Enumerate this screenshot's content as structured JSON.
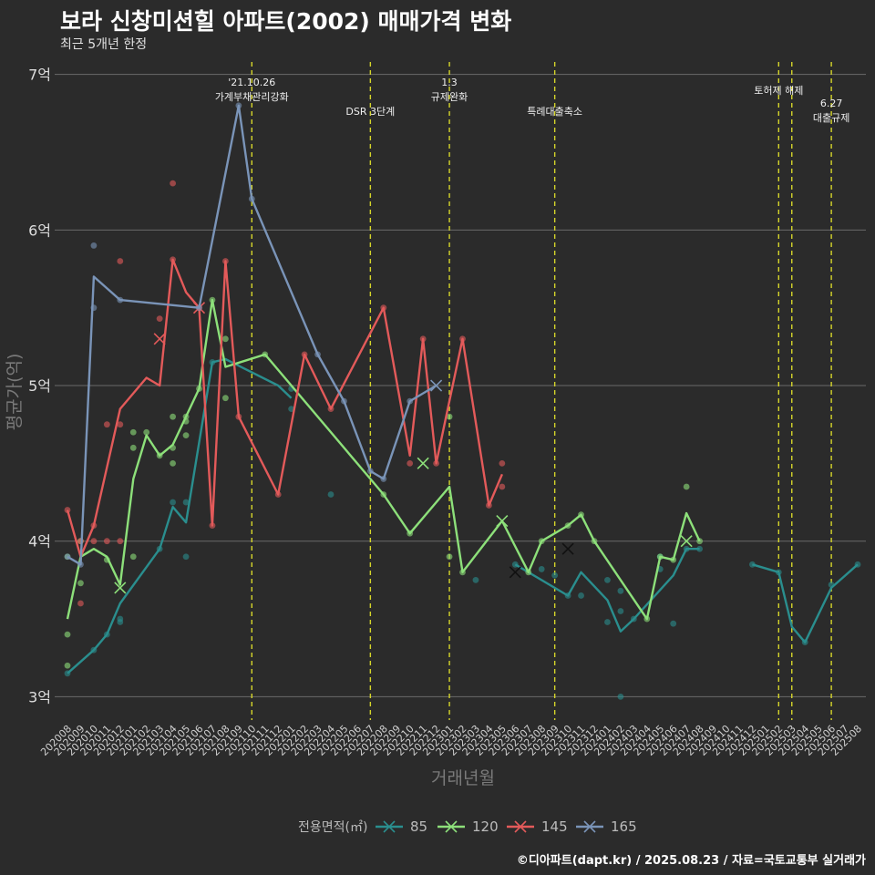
{
  "title": "보라 신창미션힐 아파트(2002) 매매가격 변화",
  "subtitle": "최근 5개년 한정",
  "caption": "©디아파트(dapt.kr) / 2025.08.23 / 자료=국토교통부 실거래가",
  "chart_data": {
    "type": "line",
    "xlabel": "거래년월",
    "ylabel": "평균가(억)",
    "ylim": [
      2.85,
      7.08
    ],
    "yticks": [
      {
        "v": 3,
        "label": "3억"
      },
      {
        "v": 4,
        "label": "4억"
      },
      {
        "v": 5,
        "label": "5억"
      },
      {
        "v": 6,
        "label": "6억"
      },
      {
        "v": 7,
        "label": "7억"
      }
    ],
    "categories": [
      "202008",
      "202009",
      "202010",
      "202011",
      "202012",
      "202101",
      "202102",
      "202103",
      "202104",
      "202105",
      "202106",
      "202107",
      "202108",
      "202109",
      "202110",
      "202111",
      "202112",
      "202201",
      "202202",
      "202203",
      "202204",
      "202205",
      "202206",
      "202207",
      "202208",
      "202209",
      "202210",
      "202211",
      "202212",
      "202301",
      "202302",
      "202303",
      "202304",
      "202305",
      "202306",
      "202307",
      "202308",
      "202309",
      "202310",
      "202311",
      "202312",
      "202401",
      "202402",
      "202403",
      "202404",
      "202405",
      "202406",
      "202407",
      "202408",
      "202409",
      "202410",
      "202411",
      "202412",
      "202501",
      "202502",
      "202503",
      "202504",
      "202505",
      "202506",
      "202507",
      "202508"
    ],
    "grid": true,
    "legend_title": "전용면적(㎡)",
    "legend_position": "bottom",
    "series": [
      {
        "name": "85",
        "color": "#2a8e8e",
        "line": [
          [
            0,
            3.15
          ],
          [
            2,
            3.3
          ],
          [
            3,
            3.4
          ],
          [
            4,
            3.6
          ],
          [
            7,
            3.95
          ],
          [
            8,
            4.22
          ],
          [
            9,
            4.12
          ],
          [
            11,
            5.15
          ],
          [
            12,
            5.17
          ],
          [
            16,
            5.0
          ],
          [
            17,
            4.92
          ]
        ],
        "points": [
          [
            0,
            3.15
          ],
          [
            2,
            3.3
          ],
          [
            3,
            3.4
          ],
          [
            4,
            3.48
          ],
          [
            4,
            3.5
          ],
          [
            7,
            3.95
          ],
          [
            8,
            4.25
          ],
          [
            9,
            4.25
          ],
          [
            9,
            3.9
          ],
          [
            11,
            5.15
          ],
          [
            17,
            4.98
          ],
          [
            17,
            4.85
          ],
          [
            20,
            4.3
          ],
          [
            31,
            3.75
          ],
          [
            34,
            3.85
          ],
          [
            36,
            3.82
          ],
          [
            37,
            3.78
          ],
          [
            38,
            3.65
          ],
          [
            39,
            3.65
          ],
          [
            41,
            3.75
          ],
          [
            41,
            3.48
          ],
          [
            42,
            3.55
          ],
          [
            42,
            3.68
          ],
          [
            42,
            3.0
          ],
          [
            43,
            3.5
          ],
          [
            45,
            3.9
          ],
          [
            45,
            3.82
          ],
          [
            46,
            3.47
          ],
          [
            47,
            3.95
          ],
          [
            48,
            3.95
          ],
          [
            52,
            3.85
          ],
          [
            54,
            3.8
          ],
          [
            56,
            3.35
          ],
          [
            58,
            3.72
          ],
          [
            60,
            3.85
          ]
        ],
        "crosses": [
          [
            34,
            3.8
          ],
          [
            38,
            3.95
          ]
        ],
        "line2": [
          [
            34,
            3.85
          ],
          [
            38,
            3.65
          ],
          [
            39,
            3.8
          ],
          [
            41,
            3.62
          ],
          [
            42,
            3.42
          ],
          [
            43,
            3.5
          ],
          [
            46,
            3.78
          ],
          [
            47,
            3.95
          ],
          [
            48,
            3.95
          ]
        ],
        "line3": [
          [
            52,
            3.85
          ],
          [
            54,
            3.8
          ],
          [
            55,
            3.45
          ],
          [
            56,
            3.35
          ],
          [
            58,
            3.7
          ],
          [
            60,
            3.85
          ]
        ]
      },
      {
        "name": "120",
        "color": "#8de07a",
        "line": [
          [
            0,
            3.5
          ],
          [
            1,
            3.9
          ],
          [
            2,
            3.95
          ],
          [
            3,
            3.9
          ],
          [
            4,
            3.72
          ],
          [
            5,
            4.4
          ],
          [
            6,
            4.68
          ],
          [
            7,
            4.55
          ],
          [
            8,
            4.62
          ],
          [
            10,
            4.98
          ],
          [
            11,
            5.55
          ],
          [
            12,
            5.12
          ],
          [
            15,
            5.2
          ],
          [
            24,
            4.3
          ],
          [
            26,
            4.05
          ],
          [
            29,
            4.35
          ],
          [
            30,
            3.8
          ],
          [
            33,
            4.13
          ],
          [
            35,
            3.8
          ],
          [
            36,
            4.0
          ],
          [
            38,
            4.1
          ],
          [
            39,
            4.17
          ],
          [
            40,
            4.0
          ],
          [
            44,
            3.5
          ],
          [
            45,
            3.9
          ],
          [
            46,
            3.88
          ],
          [
            47,
            4.18
          ],
          [
            48,
            4.0
          ]
        ],
        "points": [
          [
            0,
            3.9
          ],
          [
            0,
            3.4
          ],
          [
            0,
            3.2
          ],
          [
            1,
            3.73
          ],
          [
            1,
            4.0
          ],
          [
            3,
            3.88
          ],
          [
            5,
            4.6
          ],
          [
            5,
            4.7
          ],
          [
            5,
            3.9
          ],
          [
            6,
            4.7
          ],
          [
            7,
            4.55
          ],
          [
            8,
            4.8
          ],
          [
            8,
            4.6
          ],
          [
            8,
            4.5
          ],
          [
            9,
            4.8
          ],
          [
            9,
            4.77
          ],
          [
            9,
            4.68
          ],
          [
            10,
            4.98
          ],
          [
            11,
            5.55
          ],
          [
            12,
            4.92
          ],
          [
            12,
            5.3
          ],
          [
            15,
            5.2
          ],
          [
            24,
            4.3
          ],
          [
            26,
            4.05
          ],
          [
            29,
            4.8
          ],
          [
            29,
            3.9
          ],
          [
            30,
            3.8
          ],
          [
            35,
            3.8
          ],
          [
            36,
            4.0
          ],
          [
            38,
            4.1
          ],
          [
            39,
            4.17
          ],
          [
            40,
            4.0
          ],
          [
            44,
            3.5
          ],
          [
            45,
            3.9
          ],
          [
            46,
            3.88
          ],
          [
            47,
            4.35
          ],
          [
            48,
            4.0
          ]
        ],
        "crosses": [
          [
            4,
            3.7
          ],
          [
            27,
            4.5
          ],
          [
            33,
            4.13
          ],
          [
            47,
            4.0
          ]
        ]
      },
      {
        "name": "145",
        "color": "#e35a5a",
        "line": [
          [
            0,
            4.2
          ],
          [
            1,
            3.9
          ],
          [
            2,
            4.1
          ],
          [
            4,
            4.85
          ],
          [
            6,
            5.05
          ],
          [
            7,
            5.0
          ],
          [
            8,
            5.81
          ],
          [
            9,
            5.6
          ],
          [
            10,
            5.5
          ],
          [
            11,
            4.1
          ],
          [
            12,
            5.8
          ],
          [
            13,
            4.8
          ],
          [
            16,
            4.3
          ],
          [
            18,
            5.2
          ],
          [
            20,
            4.85
          ],
          [
            24,
            5.5
          ],
          [
            26,
            4.55
          ],
          [
            27,
            5.3
          ],
          [
            28,
            4.5
          ],
          [
            30,
            5.3
          ],
          [
            32,
            4.23
          ],
          [
            33,
            4.43
          ]
        ],
        "points": [
          [
            0,
            4.2
          ],
          [
            1,
            4.0
          ],
          [
            1,
            3.6
          ],
          [
            2,
            4.0
          ],
          [
            2,
            4.1
          ],
          [
            3,
            4.0
          ],
          [
            3,
            4.75
          ],
          [
            4,
            4.0
          ],
          [
            4,
            4.75
          ],
          [
            4,
            5.8
          ],
          [
            7,
            5.43
          ],
          [
            8,
            5.81
          ],
          [
            8,
            6.3
          ],
          [
            10,
            5.5
          ],
          [
            11,
            4.1
          ],
          [
            12,
            5.8
          ],
          [
            13,
            4.8
          ],
          [
            16,
            4.3
          ],
          [
            18,
            5.2
          ],
          [
            20,
            4.85
          ],
          [
            24,
            5.5
          ],
          [
            26,
            4.5
          ],
          [
            27,
            5.3
          ],
          [
            28,
            4.5
          ],
          [
            30,
            5.3
          ],
          [
            32,
            4.23
          ],
          [
            33,
            4.5
          ],
          [
            33,
            4.35
          ]
        ],
        "crosses": [
          [
            7,
            5.3
          ],
          [
            10,
            5.5
          ]
        ]
      },
      {
        "name": "165",
        "color": "#7a94b8",
        "line": [
          [
            0,
            3.9
          ],
          [
            1,
            3.85
          ],
          [
            2,
            5.7
          ],
          [
            4,
            5.55
          ],
          [
            10,
            5.5
          ],
          [
            13,
            6.8
          ],
          [
            14,
            6.2
          ],
          [
            19,
            5.2
          ],
          [
            21,
            4.9
          ],
          [
            23,
            4.45
          ],
          [
            24,
            4.4
          ],
          [
            26,
            4.9
          ],
          [
            28,
            5.0
          ]
        ],
        "points": [
          [
            0,
            3.9
          ],
          [
            1,
            3.85
          ],
          [
            2,
            5.9
          ],
          [
            2,
            5.5
          ],
          [
            4,
            5.55
          ],
          [
            10,
            5.5
          ],
          [
            13,
            6.8
          ],
          [
            14,
            6.2
          ],
          [
            19,
            5.2
          ],
          [
            21,
            4.9
          ],
          [
            23,
            4.45
          ],
          [
            24,
            4.4
          ],
          [
            26,
            4.9
          ]
        ],
        "crosses": [
          [
            28,
            5.0
          ]
        ]
      }
    ],
    "annotations": [
      {
        "x": "202110",
        "lines": [
          "'21.10.26",
          "가계부채관리강화"
        ]
      },
      {
        "x": "202207",
        "lines": [
          "DSR 3단계"
        ]
      },
      {
        "x": "202301",
        "lines": [
          "1.3",
          "규제완화"
        ]
      },
      {
        "x": "202309",
        "lines": [
          "특례대출축소"
        ]
      },
      {
        "x": "202502",
        "lines": [
          "토허제 해제"
        ]
      },
      {
        "x": "202503",
        "lines": []
      },
      {
        "x": "202506",
        "lines": [
          "6.27",
          "대출규제"
        ]
      }
    ]
  }
}
